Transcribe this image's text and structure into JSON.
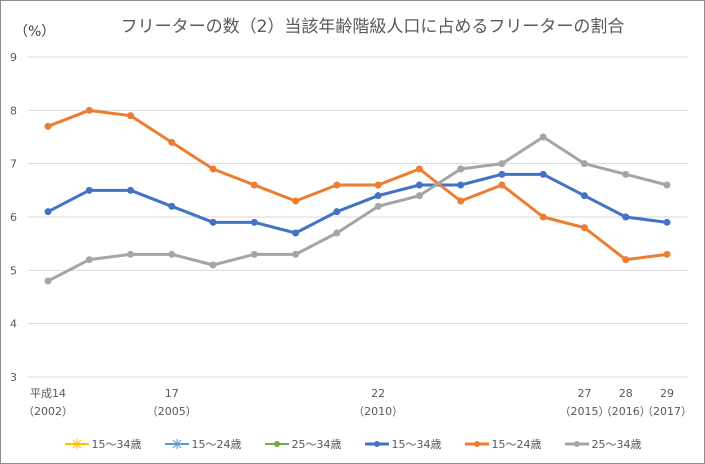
{
  "chart_data": {
    "type": "line",
    "title": "フリーターの数（2）当該年齢階級人口に占めるフリーターの割合",
    "ylabel": "（%）",
    "ylim": [
      3,
      9
    ],
    "yticks": [
      "3",
      "4",
      "5",
      "6",
      "7",
      "8",
      "9"
    ],
    "grid": true,
    "legend_position": "bottom",
    "x": [
      2002,
      2003,
      2004,
      2005,
      2006,
      2007,
      2008,
      2009,
      2010,
      2011,
      2012,
      2013,
      2014,
      2015,
      2016,
      2017
    ],
    "xtick_labels": [
      {
        "index": 0,
        "line1": "平成14",
        "line2": "（2002）"
      },
      {
        "index": 3,
        "line1": "17",
        "line2": "（2005）"
      },
      {
        "index": 8,
        "line1": "22",
        "line2": "（2010）"
      },
      {
        "index": 13,
        "line1": "27",
        "line2": "（2015）"
      },
      {
        "index": 14,
        "line1": "28",
        "line2": "（2016）"
      },
      {
        "index": 15,
        "line1": "29",
        "line2": "（2017）"
      }
    ],
    "series": [
      {
        "name": "15～34歳",
        "color": "#4472c4",
        "marker": "circle",
        "values": [
          6.1,
          6.5,
          6.5,
          6.2,
          5.9,
          5.9,
          5.7,
          6.1,
          6.4,
          6.6,
          6.6,
          6.8,
          6.8,
          6.4,
          6.0,
          5.9
        ]
      },
      {
        "name": "15～24歳",
        "color": "#ed7d31",
        "marker": "star-circle",
        "values": [
          7.7,
          8.0,
          7.9,
          7.4,
          6.9,
          6.6,
          6.3,
          6.6,
          6.6,
          6.9,
          6.3,
          6.6,
          6.0,
          5.8,
          5.2,
          5.3
        ]
      },
      {
        "name": "25～34歳",
        "color": "#a5a5a5",
        "marker": "circle",
        "values": [
          4.8,
          5.2,
          5.3,
          5.3,
          5.1,
          5.3,
          5.3,
          5.7,
          6.2,
          6.4,
          6.9,
          7.0,
          7.5,
          7.0,
          6.8,
          6.6
        ]
      }
    ],
    "legend": [
      {
        "name": "15～34歳",
        "color": "#ffc000",
        "marker": "star",
        "thick": false
      },
      {
        "name": "15～24歳",
        "color": "#5b9bd5",
        "marker": "star",
        "thick": false
      },
      {
        "name": "25～34歳",
        "color": "#70ad47",
        "marker": "circle",
        "thick": false
      },
      {
        "name": "15～34歳",
        "color": "#4472c4",
        "marker": "circle",
        "thick": true
      },
      {
        "name": "15～24歳",
        "color": "#ed7d31",
        "marker": "circle",
        "thick": true
      },
      {
        "name": "25～34歳",
        "color": "#a5a5a5",
        "marker": "circle",
        "thick": true
      }
    ]
  }
}
